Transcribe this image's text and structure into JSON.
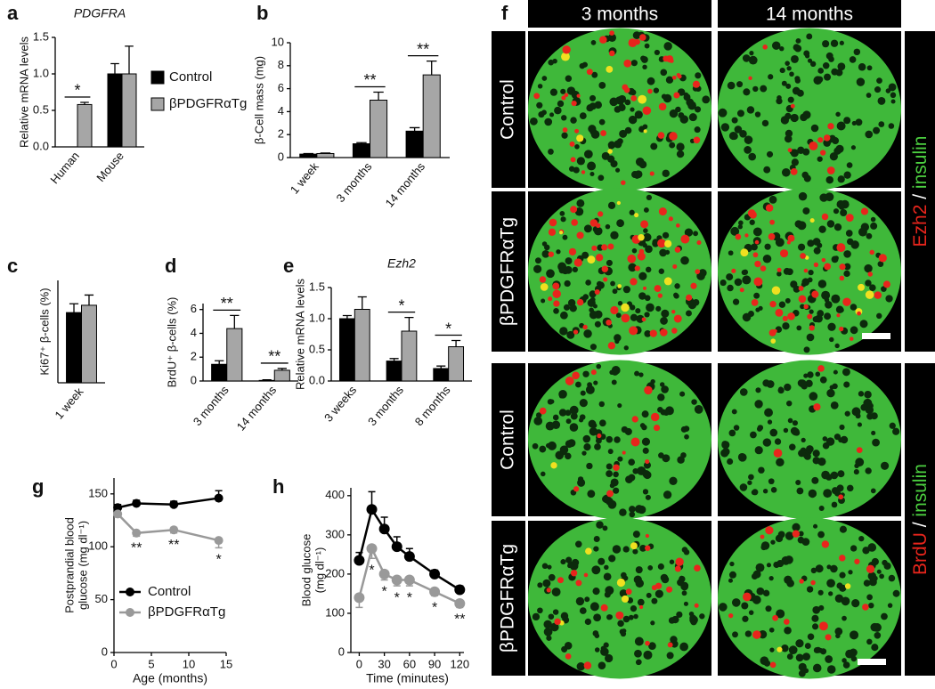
{
  "chart_data": [
    {
      "type": "bar",
      "panel": "a",
      "title": "PDGFRA",
      "ylabel": "Relative mRNA levels",
      "categories": [
        "Human",
        "Mouse"
      ],
      "series": [
        {
          "name": "Control",
          "color": "#000000",
          "values": [
            null,
            1.0
          ],
          "errors": [
            null,
            0.14
          ]
        },
        {
          "name": "βPDGFRαTg",
          "color": "#a6a6a6",
          "values": [
            0.58,
            1.0
          ],
          "errors": [
            0.03,
            0.38
          ]
        }
      ],
      "significance": [
        "*",
        null
      ],
      "ylim": [
        0,
        1.5
      ],
      "yticks": [
        {
          "value": 0,
          "label": "0.0"
        },
        {
          "value": 0.5,
          "label": "0.5"
        },
        {
          "value": 1,
          "label": "1.0"
        },
        {
          "value": 1.5,
          "label": "1.5"
        }
      ],
      "legend": "right"
    },
    {
      "type": "bar",
      "panel": "b",
      "ylabel": "β-Cell mass (mg)",
      "categories": [
        "1 week",
        "3 months",
        "14 months"
      ],
      "series": [
        {
          "color": "#000000",
          "values": [
            0.3,
            1.2,
            2.3
          ],
          "errors": [
            0.05,
            0.1,
            0.3
          ]
        },
        {
          "color": "#a6a6a6",
          "values": [
            0.35,
            5.0,
            7.2
          ],
          "errors": [
            0.05,
            0.7,
            1.2
          ]
        }
      ],
      "significance": [
        null,
        "**",
        "**"
      ],
      "ylim": [
        0,
        10
      ],
      "yticks": [
        0,
        2,
        4,
        6,
        8,
        10
      ]
    },
    {
      "type": "bar",
      "panel": "c",
      "ylabel": "Ki67⁺ β-cells (%)",
      "categories": [
        "1 week"
      ],
      "series": [
        {
          "color": "#000000",
          "values": [
            4.8
          ],
          "errors": [
            0.6
          ]
        },
        {
          "color": "#a6a6a6",
          "values": [
            5.3
          ],
          "errors": [
            0.7
          ]
        }
      ],
      "ylim": [
        0,
        7
      ]
    },
    {
      "type": "bar",
      "panel": "d",
      "ylabel": "BrdU⁺ β-cells (%)",
      "categories": [
        "3 months",
        "14 months"
      ],
      "series": [
        {
          "color": "#000000",
          "values": [
            1.4,
            0.05
          ],
          "errors": [
            0.3,
            0.05
          ]
        },
        {
          "color": "#a6a6a6",
          "values": [
            4.4,
            0.9
          ],
          "errors": [
            1.1,
            0.15
          ]
        }
      ],
      "significance": [
        "**",
        "**"
      ],
      "ylim": [
        0,
        6.5
      ],
      "yticks": [
        0,
        2,
        4,
        6
      ]
    },
    {
      "type": "bar",
      "panel": "e",
      "title": "Ezh2",
      "ylabel": "Relative mRNA levels",
      "categories": [
        "3 weeks",
        "3 months",
        "8 months"
      ],
      "series": [
        {
          "color": "#000000",
          "values": [
            1.0,
            0.32,
            0.2
          ],
          "errors": [
            0.05,
            0.04,
            0.04
          ]
        },
        {
          "color": "#a6a6a6",
          "values": [
            1.15,
            0.8,
            0.55
          ],
          "errors": [
            0.2,
            0.22,
            0.1
          ]
        }
      ],
      "significance": [
        null,
        "*",
        "*"
      ],
      "ylim": [
        0,
        1.5
      ],
      "yticks": [
        {
          "value": 0,
          "label": "0.0"
        },
        {
          "value": 0.5,
          "label": "0.5"
        },
        {
          "value": 1,
          "label": "1.0"
        },
        {
          "value": 1.5,
          "label": "1.5"
        }
      ]
    },
    {
      "type": "line",
      "panel": "g",
      "ylabel": [
        "Postprandial blood",
        "glucose (mg dl⁻¹)"
      ],
      "xlabel": "Age (months)",
      "x": [
        0.5,
        3,
        8,
        14
      ],
      "series": [
        {
          "name": "Control",
          "color": "#000000",
          "values": [
            137,
            141,
            140,
            146
          ],
          "errors": [
            3,
            3,
            3,
            7
          ]
        },
        {
          "name": "βPDGFRαTg",
          "color": "#999999",
          "values": [
            131,
            113,
            116,
            106
          ],
          "errors": [
            3,
            3,
            3,
            7
          ]
        }
      ],
      "significance": [
        null,
        "**",
        "**",
        "*"
      ],
      "xlim": [
        0,
        15
      ],
      "xticks": [
        0,
        5,
        10,
        15
      ],
      "ylim": [
        0,
        165
      ],
      "yticks": [
        0,
        50,
        100,
        150
      ],
      "legend": "lower-left"
    },
    {
      "type": "line",
      "panel": "h",
      "ylabel": [
        "Blood glucose",
        "(mg dl⁻¹)"
      ],
      "xlabel": "Time (minutes)",
      "x": [
        0,
        15,
        30,
        45,
        60,
        90,
        120
      ],
      "series": [
        {
          "color": "#000000",
          "values": [
            235,
            365,
            315,
            270,
            245,
            200,
            160
          ],
          "errors": [
            20,
            45,
            30,
            25,
            20,
            10,
            10
          ]
        },
        {
          "color": "#999999",
          "values": [
            140,
            265,
            200,
            185,
            185,
            155,
            125
          ],
          "errors": [
            25,
            25,
            15,
            15,
            15,
            10,
            10
          ]
        }
      ],
      "significance": [
        null,
        "*",
        "*",
        "*",
        "*",
        "*",
        "**"
      ],
      "xlim": [
        -10,
        125
      ],
      "xticks": [
        0,
        30,
        60,
        90,
        120
      ],
      "ylim": [
        0,
        420
      ],
      "yticks": [
        0,
        100,
        200,
        300,
        400
      ]
    }
  ],
  "image_panel": {
    "panel": "f",
    "columns": [
      "3 months",
      "14 months"
    ],
    "rows": [
      "Control",
      "βPDGFRαTg",
      "Control",
      "βPDGFRαTg"
    ],
    "stains": [
      {
        "red": "Ezh2",
        "sep": " / ",
        "green": "insulin"
      },
      {
        "red": "BrdU",
        "sep": " / ",
        "green": "insulin"
      }
    ]
  }
}
